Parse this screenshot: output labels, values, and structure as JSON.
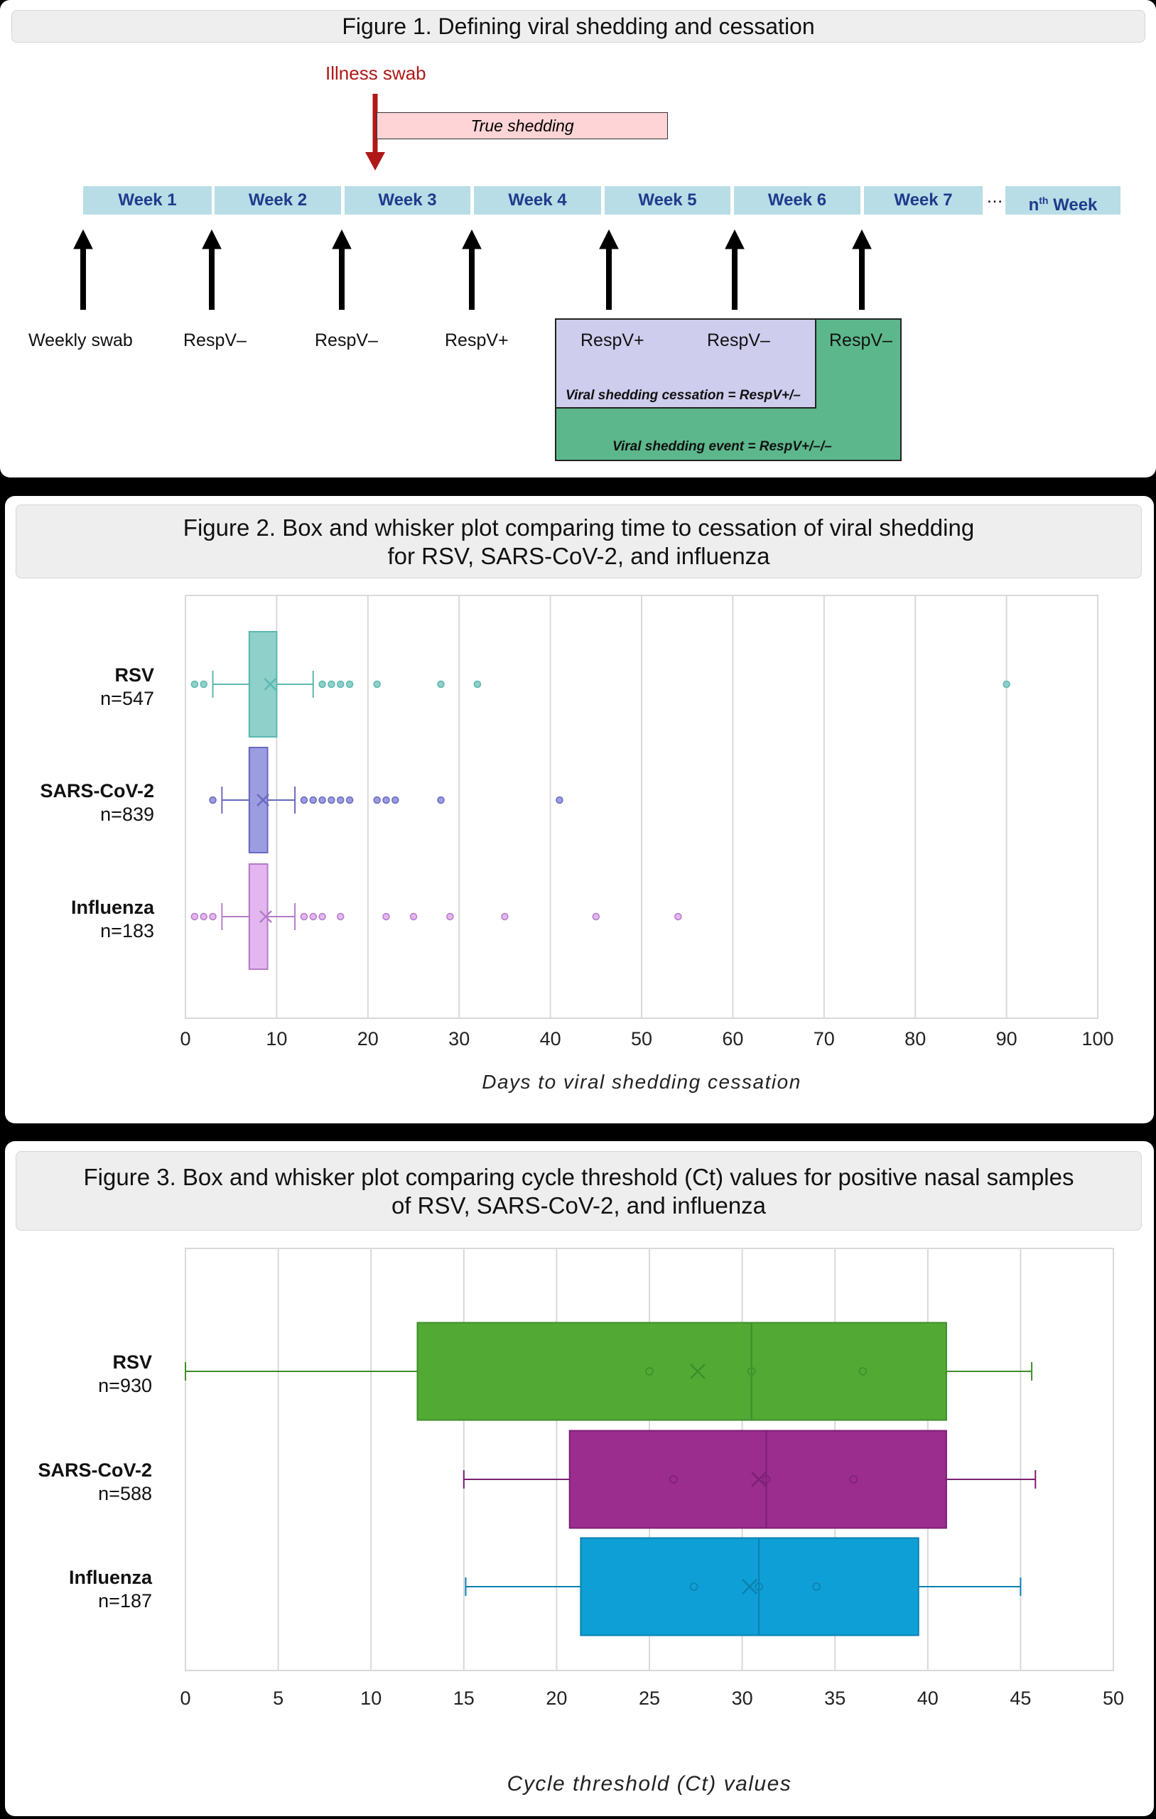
{
  "figure1": {
    "title": "Figure 1. Defining viral shedding and cessation",
    "illness_swab": "Illness swab",
    "true_shedding": "True shedding",
    "weeks": [
      "Week 1",
      "Week 2",
      "Week 3",
      "Week 4",
      "Week 5",
      "Week 6",
      "Week 7"
    ],
    "ellipsis": "…",
    "nth_week_prefix": "n",
    "nth_week_sup": "th",
    "nth_week_suffix": " Week",
    "swab_labels": [
      "Weekly swab",
      "RespV–",
      "RespV–",
      "RespV+"
    ],
    "box_labels": [
      "RespV+",
      "RespV–",
      "RespV–"
    ],
    "cessation_label": "Viral shedding cessation = RespV+/–",
    "event_label": "Viral shedding event = RespV+/–/–",
    "colors": {
      "week_bg": "#b8dde6",
      "week_text": "#1f3b8c",
      "arrow_red": "#b01818",
      "shedding_bg": "#ffd4d6",
      "lavender": "#cfcdee",
      "green": "#5cb88c"
    }
  },
  "figure2": {
    "title_line1": "Figure 2. Box and whisker plot comparing time to cessation of viral shedding",
    "title_line2": "for RSV, SARS-CoV-2, and influenza"
  },
  "figure3": {
    "title_line1": "Figure 3. Box and whisker plot comparing cycle threshold (Ct) values for positive nasal samples",
    "title_line2": "of RSV, SARS-CoV-2, and influenza"
  },
  "chart_data": [
    {
      "type": "box",
      "orientation": "horizontal",
      "xlabel": "Days to viral shedding cessation",
      "xlim": [
        0,
        100
      ],
      "xticks": [
        0,
        10,
        20,
        30,
        40,
        50,
        60,
        70,
        80,
        90,
        100
      ],
      "grid": true,
      "series": [
        {
          "name": "RSV",
          "n_label": "n=547",
          "color": "#8fd0ca",
          "stroke": "#5bb8b0",
          "whisker_low": 3,
          "q1": 7,
          "median": 7,
          "q3": 10,
          "whisker_high": 14,
          "mean": 9.3,
          "outliers": [
            1,
            2,
            15,
            16,
            17,
            18,
            21,
            28,
            32,
            90
          ]
        },
        {
          "name": "SARS-CoV-2",
          "n_label": "n=839",
          "color": "#9c9ce0",
          "stroke": "#6a6ac0",
          "whisker_low": 4,
          "q1": 7,
          "median": 7,
          "q3": 9,
          "whisker_high": 12,
          "mean": 8.5,
          "outliers": [
            3,
            13,
            14,
            15,
            16,
            17,
            18,
            21,
            22,
            23,
            28,
            41
          ]
        },
        {
          "name": "Influenza",
          "n_label": "n=183",
          "color": "#e3b6f0",
          "stroke": "#b57cc8",
          "whisker_low": 4,
          "q1": 7,
          "median": 7,
          "q3": 9,
          "whisker_high": 12,
          "mean": 8.8,
          "outliers": [
            1,
            2,
            3,
            13,
            14,
            15,
            17,
            22,
            25,
            29,
            35,
            45,
            54
          ]
        }
      ]
    },
    {
      "type": "box",
      "orientation": "horizontal",
      "xlabel": "Cycle threshold (Ct) values",
      "xlim": [
        0,
        50
      ],
      "xticks": [
        0,
        5,
        10,
        15,
        20,
        25,
        30,
        35,
        40,
        45,
        50
      ],
      "grid": true,
      "series": [
        {
          "name": "RSV",
          "n_label": "n=930",
          "color": "#52a934",
          "stroke": "#3e8e2a",
          "whisker_low": 0,
          "q1": 12.5,
          "median": 30.5,
          "q3": 41,
          "whisker_high": 45.6,
          "mean": 27.6,
          "inner_points": [
            25,
            30.5,
            36.5
          ]
        },
        {
          "name": "SARS-CoV-2",
          "n_label": "n=588",
          "color": "#9a2d8e",
          "stroke": "#7d1f74",
          "whisker_low": 15,
          "q1": 20.7,
          "median": 31.3,
          "q3": 41,
          "whisker_high": 45.8,
          "mean": 30.9,
          "inner_points": [
            26.3,
            31.3,
            36
          ]
        },
        {
          "name": "Influenza",
          "n_label": "n=187",
          "color": "#0e9fd6",
          "stroke": "#0b80b0",
          "whisker_low": 15.1,
          "q1": 21.3,
          "median": 30.9,
          "q3": 39.5,
          "whisker_high": 45,
          "mean": 30.4,
          "inner_points": [
            27.4,
            30.9,
            34
          ]
        }
      ]
    }
  ]
}
